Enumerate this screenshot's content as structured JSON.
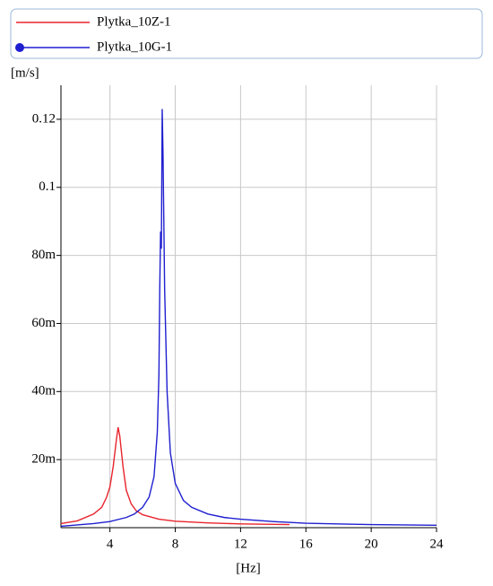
{
  "chart_data": {
    "type": "line",
    "y_unit_label": "[m/s]",
    "x_label": "[Hz]",
    "xlim": [
      1,
      24
    ],
    "xticks": [
      4,
      8,
      12,
      16,
      20,
      24
    ],
    "ylim": [
      0,
      0.13
    ],
    "yticks": [
      {
        "value": 0.02,
        "label": "20m"
      },
      {
        "value": 0.04,
        "label": "40m"
      },
      {
        "value": 0.06,
        "label": "60m"
      },
      {
        "value": 0.08,
        "label": "80m"
      },
      0.1,
      0.12
    ],
    "grid": true,
    "series": [
      {
        "name": "Plytka_10Z-1",
        "color": "#e8242c",
        "x": [
          1,
          2,
          3,
          3.5,
          3.8,
          4,
          4.2,
          4.4,
          4.5,
          4.6,
          4.8,
          5,
          5.3,
          5.6,
          6,
          7,
          8,
          10,
          12,
          15
        ],
        "values": [
          0.0012,
          0.002,
          0.004,
          0.006,
          0.009,
          0.012,
          0.018,
          0.026,
          0.0295,
          0.027,
          0.018,
          0.011,
          0.007,
          0.005,
          0.0038,
          0.0025,
          0.0019,
          0.0014,
          0.0011,
          0.0009
        ]
      },
      {
        "name": "Plytka_10G-1",
        "color": "#1f1fd0",
        "marker": "circle",
        "x": [
          1,
          2,
          3,
          4,
          5,
          5.5,
          6,
          6.4,
          6.7,
          6.9,
          7.0,
          7.05,
          7.1,
          7.15,
          7.2,
          7.25,
          7.35,
          7.5,
          7.7,
          8,
          8.5,
          9,
          10,
          11,
          12,
          14,
          16,
          20,
          24
        ],
        "values": [
          0.0004,
          0.0008,
          0.0012,
          0.0018,
          0.003,
          0.004,
          0.006,
          0.009,
          0.015,
          0.028,
          0.045,
          0.07,
          0.087,
          0.082,
          0.123,
          0.11,
          0.07,
          0.04,
          0.022,
          0.013,
          0.008,
          0.006,
          0.004,
          0.003,
          0.0025,
          0.0018,
          0.0013,
          0.0009,
          0.0007
        ]
      }
    ]
  }
}
